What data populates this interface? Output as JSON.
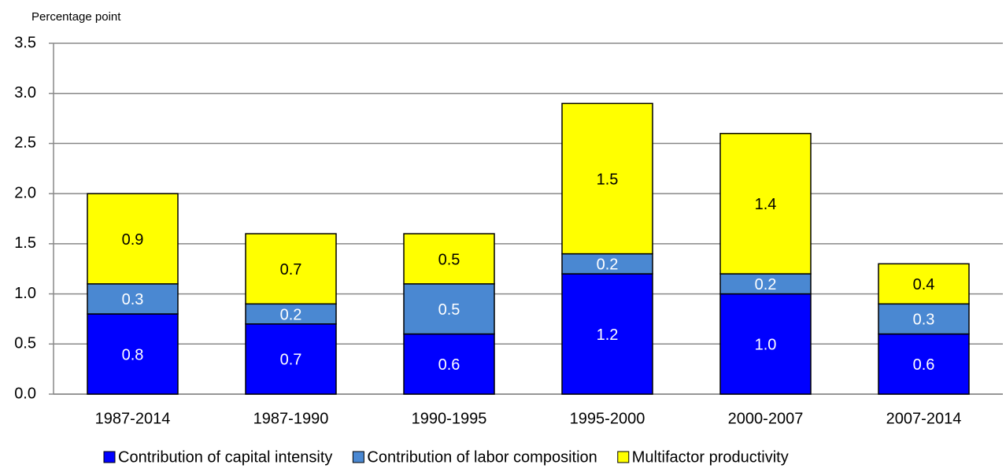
{
  "chart_data": {
    "type": "stacked-bar",
    "y_label": "Percentage point",
    "categories": [
      "1987-2014",
      "1987-1990",
      "1990-1995",
      "1995-2000",
      "2000-2007",
      "2007-2014"
    ],
    "series": [
      {
        "name": "Contribution of capital intensity",
        "color": "#0000ff",
        "label_color": "#ffffff",
        "values": [
          0.8,
          0.7,
          0.6,
          1.2,
          1.0,
          0.6
        ],
        "value_labels": [
          "0.8",
          "0.7",
          "0.6",
          "1.2",
          "1.0",
          "0.6"
        ]
      },
      {
        "name": "Contribution of labor composition",
        "color": "#4a88d2",
        "label_color": "#ffffff",
        "values": [
          0.3,
          0.2,
          0.5,
          0.2,
          0.2,
          0.3
        ],
        "value_labels": [
          "0.3",
          "0.2",
          "0.5",
          "0.2",
          "0.2",
          "0.3"
        ]
      },
      {
        "name": "Multifactor productivity",
        "color": "#ffff00",
        "label_color": "#000000",
        "values": [
          0.9,
          0.7,
          0.5,
          1.5,
          1.4,
          0.4
        ],
        "value_labels": [
          "0.9",
          "0.7",
          "0.5",
          "1.5",
          "1.4",
          "0.4"
        ]
      }
    ],
    "ylim": [
      0,
      3.5
    ],
    "yticks": [
      {
        "value": 0,
        "label": "0.0"
      },
      0.5,
      {
        "value": 1,
        "label": "1.0"
      },
      1.5,
      {
        "value": 2,
        "label": "2.0"
      },
      2.5,
      {
        "value": 3,
        "label": "3.0"
      },
      3.5
    ],
    "grid": true,
    "legend": "bottom"
  }
}
